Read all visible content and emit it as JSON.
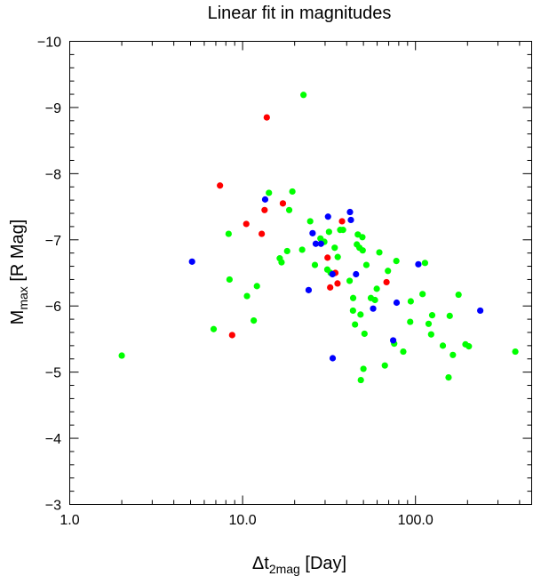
{
  "chart_data": {
    "type": "scatter",
    "title": "Linear fit in magnitudes",
    "xlabel": {
      "base": "Δt",
      "sub": "2mag",
      "rest": " [Day]"
    },
    "ylabel": {
      "base": "M",
      "sub": "max",
      "rest": " [R Mag]"
    },
    "x_scale": "log",
    "xlim": [
      1.0,
      470.0
    ],
    "ylim": [
      -3,
      -10
    ],
    "x_ticks": [
      {
        "value": 1.0,
        "label": "1.0"
      },
      {
        "value": 10.0,
        "label": "10.0"
      },
      {
        "value": 100.0,
        "label": "100.0"
      }
    ],
    "y_ticks": [
      {
        "value": -10,
        "label": "−10"
      },
      {
        "value": -9,
        "label": "−9"
      },
      {
        "value": -8,
        "label": "−8"
      },
      {
        "value": -7,
        "label": "−7"
      },
      {
        "value": -6,
        "label": "−6"
      },
      {
        "value": -5,
        "label": "−5"
      },
      {
        "value": -4,
        "label": "−4"
      },
      {
        "value": -3,
        "label": "−3"
      }
    ],
    "grid": false,
    "series": [
      {
        "color": "#ff0000",
        "points": [
          [
            7.4,
            -7.82
          ],
          [
            8.7,
            -5.56
          ],
          [
            10.5,
            -7.24
          ],
          [
            12.9,
            -7.09
          ],
          [
            13.4,
            -7.45
          ],
          [
            13.8,
            -8.85
          ],
          [
            17.1,
            -7.55
          ],
          [
            31.0,
            -6.73
          ],
          [
            32.1,
            -6.28
          ],
          [
            34.4,
            -6.5
          ],
          [
            35.4,
            -6.34
          ],
          [
            37.6,
            -7.28
          ],
          [
            68.0,
            -6.36
          ]
        ]
      },
      {
        "color": "#0000ff",
        "points": [
          [
            5.1,
            -6.67
          ],
          [
            13.5,
            -7.61
          ],
          [
            24.1,
            -6.24
          ],
          [
            25.4,
            -7.1
          ],
          [
            26.5,
            -6.94
          ],
          [
            28.4,
            -6.94
          ],
          [
            31.2,
            -7.35
          ],
          [
            33.1,
            -6.48
          ],
          [
            33.2,
            -5.21
          ],
          [
            41.8,
            -7.42
          ],
          [
            42.3,
            -7.3
          ],
          [
            45.3,
            -6.48
          ],
          [
            56.9,
            -5.96
          ],
          [
            74.3,
            -5.48
          ],
          [
            77.8,
            -6.05
          ],
          [
            103.9,
            -6.63
          ],
          [
            237.0,
            -5.93
          ]
        ]
      },
      {
        "color": "#00ff00",
        "points": [
          [
            2.0,
            -5.25
          ],
          [
            6.8,
            -5.65
          ],
          [
            8.3,
            -7.09
          ],
          [
            8.4,
            -6.4
          ],
          [
            10.6,
            -6.15
          ],
          [
            11.6,
            -5.78
          ],
          [
            12.1,
            -6.3
          ],
          [
            14.2,
            -7.71
          ],
          [
            16.4,
            -6.72
          ],
          [
            16.8,
            -6.66
          ],
          [
            18.1,
            -6.83
          ],
          [
            18.6,
            -7.45
          ],
          [
            19.4,
            -7.73
          ],
          [
            22.1,
            -6.85
          ],
          [
            22.5,
            -9.19
          ],
          [
            24.6,
            -7.28
          ],
          [
            26.2,
            -6.62
          ],
          [
            28.2,
            -7.02
          ],
          [
            29.7,
            -6.97
          ],
          [
            30.9,
            -6.55
          ],
          [
            31.6,
            -7.12
          ],
          [
            32.3,
            -6.5
          ],
          [
            34.1,
            -6.88
          ],
          [
            35.5,
            -6.74
          ],
          [
            36.7,
            -7.15
          ],
          [
            38.1,
            -7.15
          ],
          [
            41.6,
            -6.38
          ],
          [
            43.5,
            -5.93
          ],
          [
            43.6,
            -6.12
          ],
          [
            44.7,
            -5.72
          ],
          [
            45.8,
            -6.93
          ],
          [
            46.4,
            -7.08
          ],
          [
            47.4,
            -6.88
          ],
          [
            48.1,
            -5.87
          ],
          [
            48.3,
            -4.88
          ],
          [
            49.3,
            -7.04
          ],
          [
            49.5,
            -6.84
          ],
          [
            50.0,
            -5.05
          ],
          [
            50.7,
            -5.58
          ],
          [
            52.0,
            -6.62
          ],
          [
            55.2,
            -6.12
          ],
          [
            58.3,
            -6.09
          ],
          [
            59.7,
            -6.26
          ],
          [
            61.8,
            -6.81
          ],
          [
            66.5,
            -5.1
          ],
          [
            69.3,
            -6.53
          ],
          [
            75.3,
            -5.43
          ],
          [
            77.5,
            -6.68
          ],
          [
            85.0,
            -5.31
          ],
          [
            93.2,
            -5.76
          ],
          [
            93.9,
            -6.07
          ],
          [
            109.9,
            -6.18
          ],
          [
            113.5,
            -6.65
          ],
          [
            119.1,
            -5.73
          ],
          [
            123.2,
            -5.57
          ],
          [
            124.9,
            -5.86
          ],
          [
            144.0,
            -5.4
          ],
          [
            155.4,
            -4.92
          ],
          [
            157.8,
            -5.85
          ],
          [
            164.6,
            -5.26
          ],
          [
            177.5,
            -6.17
          ],
          [
            194.6,
            -5.42
          ],
          [
            203.6,
            -5.39
          ],
          [
            378.0,
            -5.31
          ]
        ]
      }
    ]
  }
}
